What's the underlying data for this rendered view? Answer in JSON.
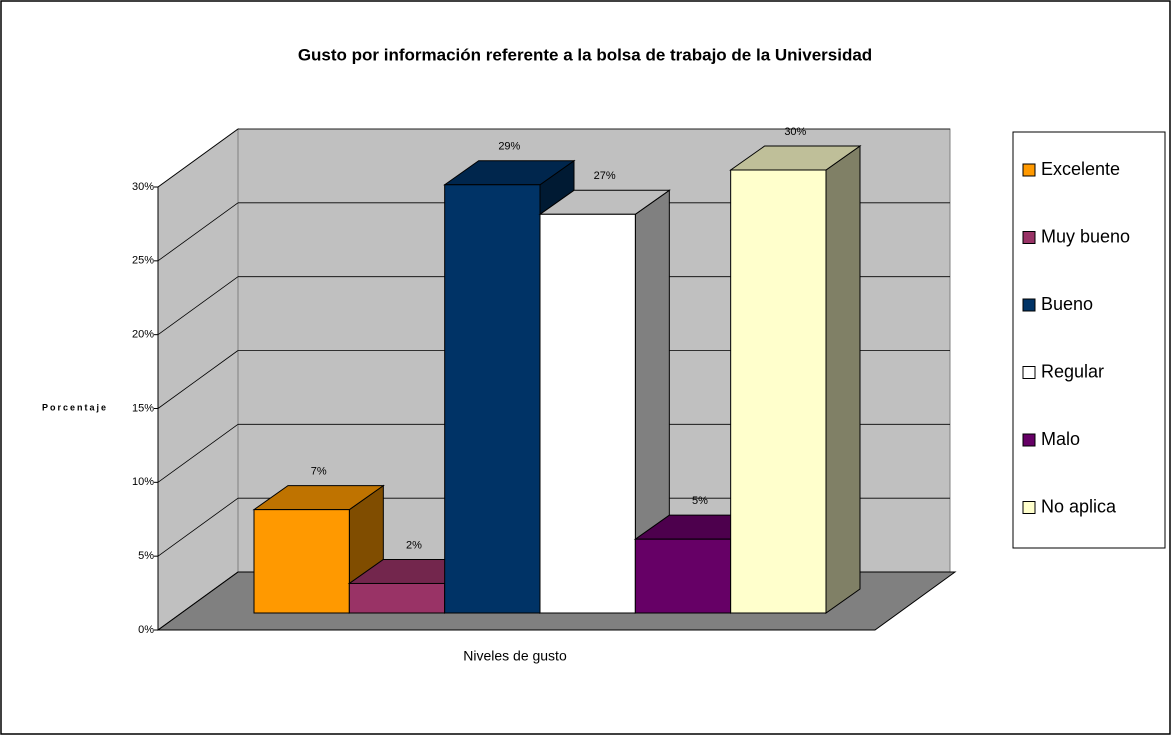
{
  "chart_data": {
    "type": "bar3d",
    "title": "Gusto por información referente a la bolsa de trabajo de la Universidad",
    "y_label": "Porcentaje",
    "x_label": "Niveles de gusto",
    "categories": [
      "Excelente",
      "Muy bueno",
      "Bueno",
      "Regular",
      "Malo",
      "No aplica"
    ],
    "values": [
      7,
      2,
      29,
      27,
      5,
      30
    ],
    "value_labels": [
      "7%",
      "2%",
      "29%",
      "27%",
      "5%",
      "30%"
    ],
    "colors": [
      "#ff9900",
      "#993366",
      "#003366",
      "#ffffff",
      "#660066",
      "#ffffcc"
    ],
    "ylim": [
      0,
      30
    ],
    "yticks": [
      {
        "value": 0,
        "label": "0%"
      },
      {
        "value": 5,
        "label": "5%"
      },
      {
        "value": 10,
        "label": "10%"
      },
      {
        "value": 15,
        "label": "15%"
      },
      {
        "value": 20,
        "label": "20%"
      },
      {
        "value": 25,
        "label": "25%"
      },
      {
        "value": 30,
        "label": "30%"
      }
    ],
    "grid": true,
    "legend": "right"
  }
}
